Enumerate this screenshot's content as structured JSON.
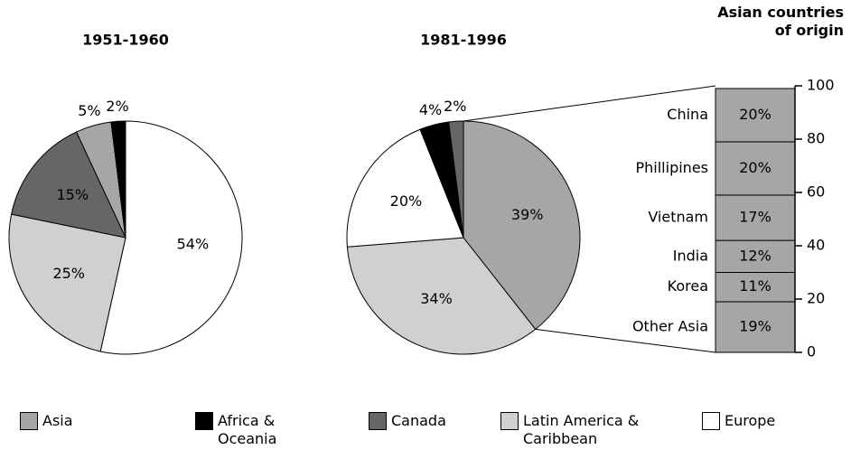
{
  "chart_data": [
    {
      "type": "pie",
      "title": "1951-1960",
      "categories": [
        "Europe",
        "Latin America & Caribbean",
        "Canada",
        "Asia",
        "Africa & Oceania"
      ],
      "values": [
        54,
        25,
        15,
        5,
        2
      ],
      "value_labels": [
        "54%",
        "25%",
        "15%",
        "5%",
        "2%"
      ],
      "colors": [
        "#ffffff",
        "#d0d0d0",
        "#666666",
        "#a6a6a6",
        "#000000"
      ]
    },
    {
      "type": "pie",
      "title": "1981-1996",
      "categories": [
        "Asia",
        "Latin America & Caribbean",
        "Europe",
        "Africa & Oceania",
        "Canada"
      ],
      "values": [
        39,
        34,
        20,
        4,
        2
      ],
      "value_labels": [
        "39%",
        "34%",
        "20%",
        "4%",
        "2%"
      ],
      "colors": [
        "#a6a6a6",
        "#d0d0d0",
        "#ffffff",
        "#000000",
        "#666666"
      ]
    },
    {
      "type": "bar",
      "stacked": true,
      "title": "Asian countries of origin",
      "categories": [
        "Other Asia",
        "Korea",
        "India",
        "Vietnam",
        "Phillipines",
        "China"
      ],
      "values": [
        19,
        11,
        12,
        17,
        20,
        20
      ],
      "value_labels": [
        "19%",
        "11%",
        "12%",
        "17%",
        "20%",
        "20%"
      ],
      "color": "#a6a6a6",
      "ylim": [
        0,
        100
      ],
      "yticks": [
        0,
        20,
        40,
        60,
        80,
        100
      ]
    }
  ],
  "legend": [
    {
      "name": "Asia",
      "color": "#a6a6a6"
    },
    {
      "name": "Africa & Oceania",
      "color": "#000000"
    },
    {
      "name": "Canada",
      "color": "#666666"
    },
    {
      "name": "Latin America & Caribbean",
      "color": "#d0d0d0"
    },
    {
      "name": "Europe",
      "color": "#ffffff"
    }
  ]
}
